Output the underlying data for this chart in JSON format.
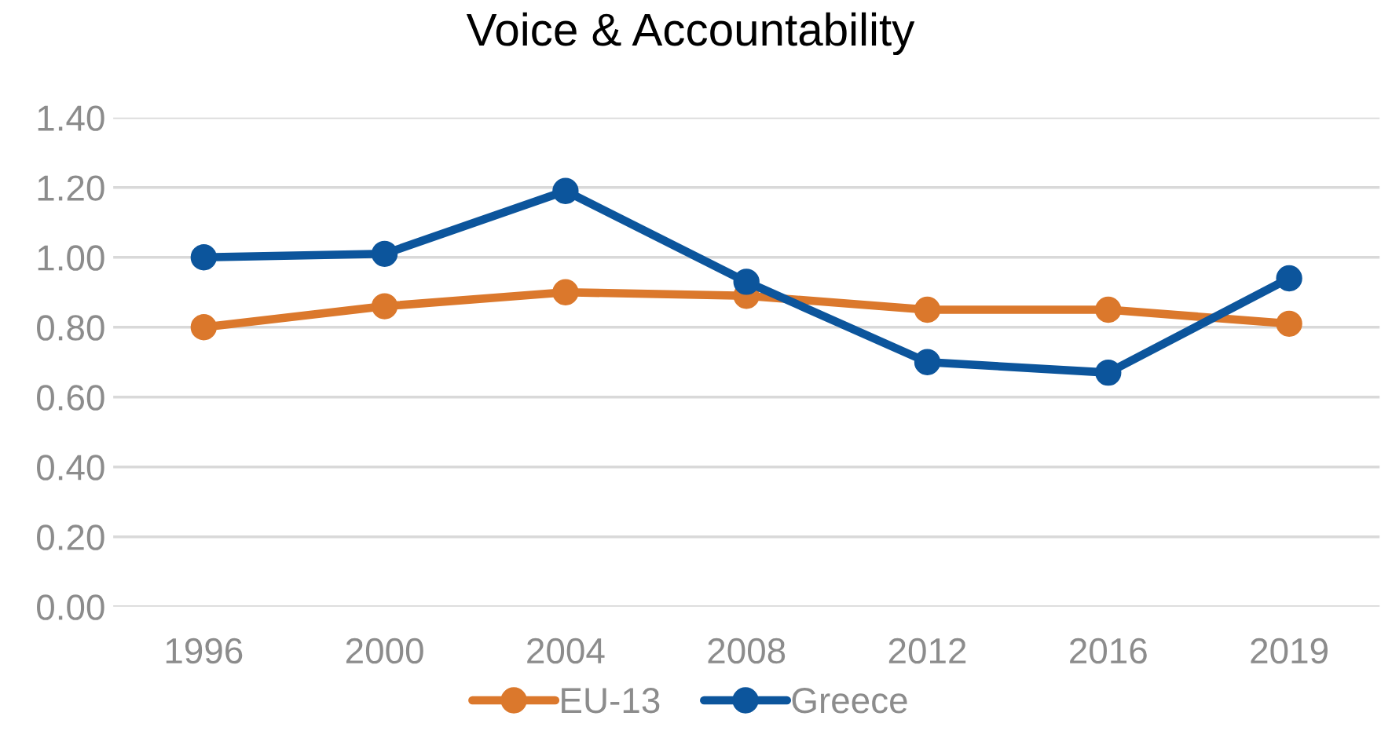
{
  "chart_data": {
    "type": "line",
    "title": "Voice & Accountability",
    "categories": [
      "1996",
      "2000",
      "2004",
      "2008",
      "2012",
      "2016",
      "2019"
    ],
    "series": [
      {
        "name": "EU-13",
        "color": "#db782c",
        "values": [
          0.8,
          0.86,
          0.9,
          0.89,
          0.85,
          0.85,
          0.81
        ]
      },
      {
        "name": "Greece",
        "color": "#0c559c",
        "values": [
          1.0,
          1.01,
          1.19,
          0.93,
          0.7,
          0.67,
          0.94
        ]
      }
    ],
    "ylim": [
      0,
      1.4
    ],
    "yticks": [
      {
        "value": 0,
        "label": "0.00"
      },
      {
        "value": 0.2,
        "label": "0.20"
      },
      {
        "value": 0.4,
        "label": "0.40"
      },
      {
        "value": 0.6,
        "label": "0.60"
      },
      {
        "value": 0.8,
        "label": "0.80"
      },
      {
        "value": 1.0,
        "label": "1.00"
      },
      {
        "value": 1.2,
        "label": "1.20"
      },
      {
        "value": 1.4,
        "label": "1.40"
      }
    ],
    "grid": "y",
    "legend": "bottom",
    "marker": "circle",
    "line_style": "solid"
  }
}
